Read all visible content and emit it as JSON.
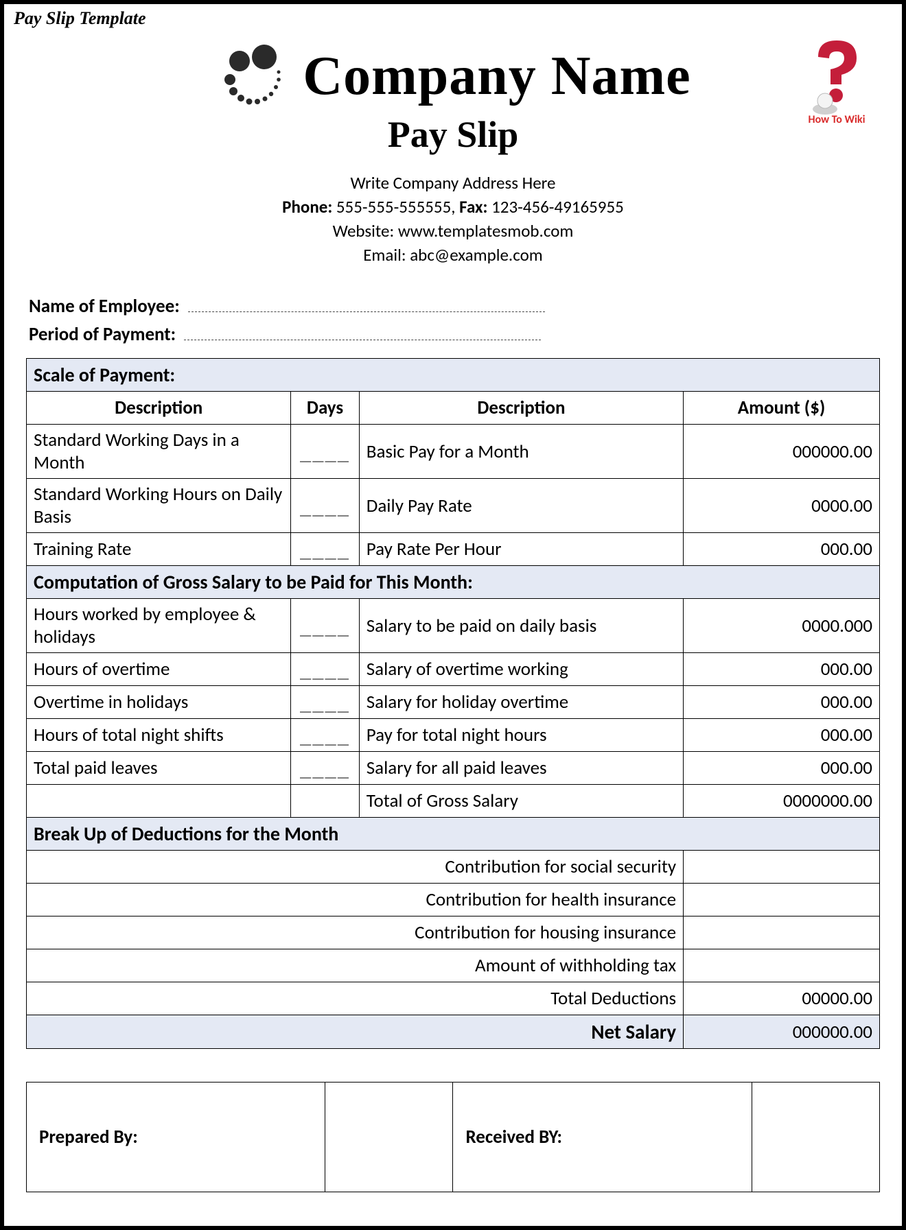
{
  "template_label": "Pay Slip Template",
  "watermark": {
    "text": "How To Wiki",
    "text_color": "#d92b2b",
    "question_color": "#c41e3a"
  },
  "header": {
    "company_name": "Company Name",
    "doc_title": "Pay Slip",
    "address": "Write Company Address Here",
    "phone_label": "Phone:",
    "phone": "555-555-555555,",
    "fax_label": "Fax:",
    "fax": "123-456-49165955",
    "website_label": "Website:",
    "website": "www.templatesmob.com",
    "email_label": "Email:",
    "email": "abc@example.com",
    "logo_color": "#2a2a2a"
  },
  "fields": {
    "employee_label": "Name of Employee:",
    "period_label": "Period of Payment:"
  },
  "table": {
    "section1": "Scale of Payment:",
    "section2": "Computation of Gross Salary to be Paid for This Month:",
    "section3": "Break Up of Deductions for the Month",
    "col_description": "Description",
    "col_days": "Days",
    "col_amount": "Amount ($)",
    "net_salary_label": "Net Salary",
    "net_salary_value": "000000.00",
    "blank_days": "____",
    "colors": {
      "section_bg": "#e4e9f4",
      "border": "#000000"
    },
    "column_widths_pct": [
      30,
      8,
      40,
      22
    ],
    "scale_rows": [
      {
        "desc_left": "Standard Working Days in a Month",
        "desc_right": "Basic Pay for a Month",
        "amount": "000000.00"
      },
      {
        "desc_left": "Standard Working Hours on Daily Basis",
        "desc_right": "Daily Pay Rate",
        "amount": "0000.00"
      },
      {
        "desc_left": "Training Rate",
        "desc_right": "Pay Rate Per Hour",
        "amount": "000.00"
      }
    ],
    "gross_rows": [
      {
        "desc_left": "Hours worked by employee & holidays",
        "desc_right": "Salary to be paid on daily basis",
        "amount": "0000.000"
      },
      {
        "desc_left": "Hours of overtime",
        "desc_right": "Salary of overtime working",
        "amount": "000.00"
      },
      {
        "desc_left": "Overtime in holidays",
        "desc_right": "Salary for holiday overtime",
        "amount": "000.00"
      },
      {
        "desc_left": "Hours of total night shifts",
        "desc_right": "Pay for total night hours",
        "amount": "000.00"
      },
      {
        "desc_left": "Total paid leaves",
        "desc_right": "Salary for all paid leaves",
        "amount": "000.00"
      },
      {
        "desc_left": "",
        "desc_right": "Total of Gross Salary",
        "amount": "0000000.00"
      }
    ],
    "deduction_rows": [
      {
        "label": "Contribution for social security",
        "amount": ""
      },
      {
        "label": "Contribution for health insurance",
        "amount": ""
      },
      {
        "label": "Contribution for housing insurance",
        "amount": ""
      },
      {
        "label": "Amount of withholding tax",
        "amount": ""
      },
      {
        "label": "Total Deductions",
        "amount": "00000.00"
      }
    ]
  },
  "signatures": {
    "prepared_by": "Prepared By:",
    "received_by": "Received BY:"
  }
}
